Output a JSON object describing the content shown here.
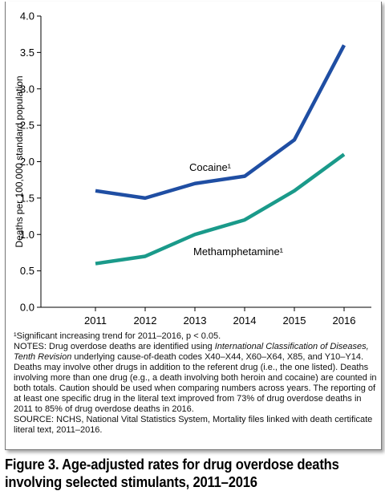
{
  "chart_data": {
    "type": "line",
    "x": [
      2011,
      2012,
      2013,
      2014,
      2015,
      2016
    ],
    "x_tick_labels": [
      "2011",
      "2012",
      "2013",
      "2014",
      "2015",
      "2016"
    ],
    "ylabel": "Deaths per 100,000 standard population",
    "ylim": [
      0,
      4.0
    ],
    "y_ticks": [
      0.0,
      0.5,
      1.0,
      1.5,
      2.0,
      2.5,
      3.0,
      3.5,
      4.0
    ],
    "y_tick_labels": [
      "0.0",
      "0.5",
      "1.0",
      "1.5",
      "2.0",
      "2.5",
      "3.0",
      "3.5",
      "4.0"
    ],
    "grid": false,
    "series": [
      {
        "name": "Cocaine¹",
        "color": "#1f4ea3",
        "values": [
          1.6,
          1.5,
          1.7,
          1.8,
          2.3,
          3.6
        ]
      },
      {
        "name": "Methamphetamine¹",
        "color": "#1a9a8a",
        "values": [
          0.6,
          0.7,
          1.0,
          1.2,
          1.6,
          2.1
        ]
      }
    ]
  },
  "footnotes": {
    "significant": "¹Significant increasing trend for 2011–2016, p < 0.05.",
    "notes_prefix": "NOTES: Drug overdose deaths are identified using ",
    "notes_italic": "International Classification of Diseases, Tenth Revision",
    "notes_rest": " underlying cause-of-death codes X40–X44, X60–X64, X85, and Y10–Y14. Deaths may involve other drugs in addition to the referent drug (i.e., the one listed). Deaths involving more than one drug (e.g., a death involving both heroin and cocaine) are counted in both totals. Caution should be used when comparing numbers across years. The reporting of at least one specific drug in the literal text improved from 73% of drug overdose deaths in 2011 to 85% of drug overdose deaths in 2016.",
    "source": "SOURCE: NCHS, National Vital Statistics System, Mortality files linked with death certificate literal text, 2011–2016."
  },
  "caption": {
    "line1": "Figure 3. Age-adjusted rates for drug overdose deaths",
    "line2": "involving selected stimulants, 2011–2016"
  }
}
